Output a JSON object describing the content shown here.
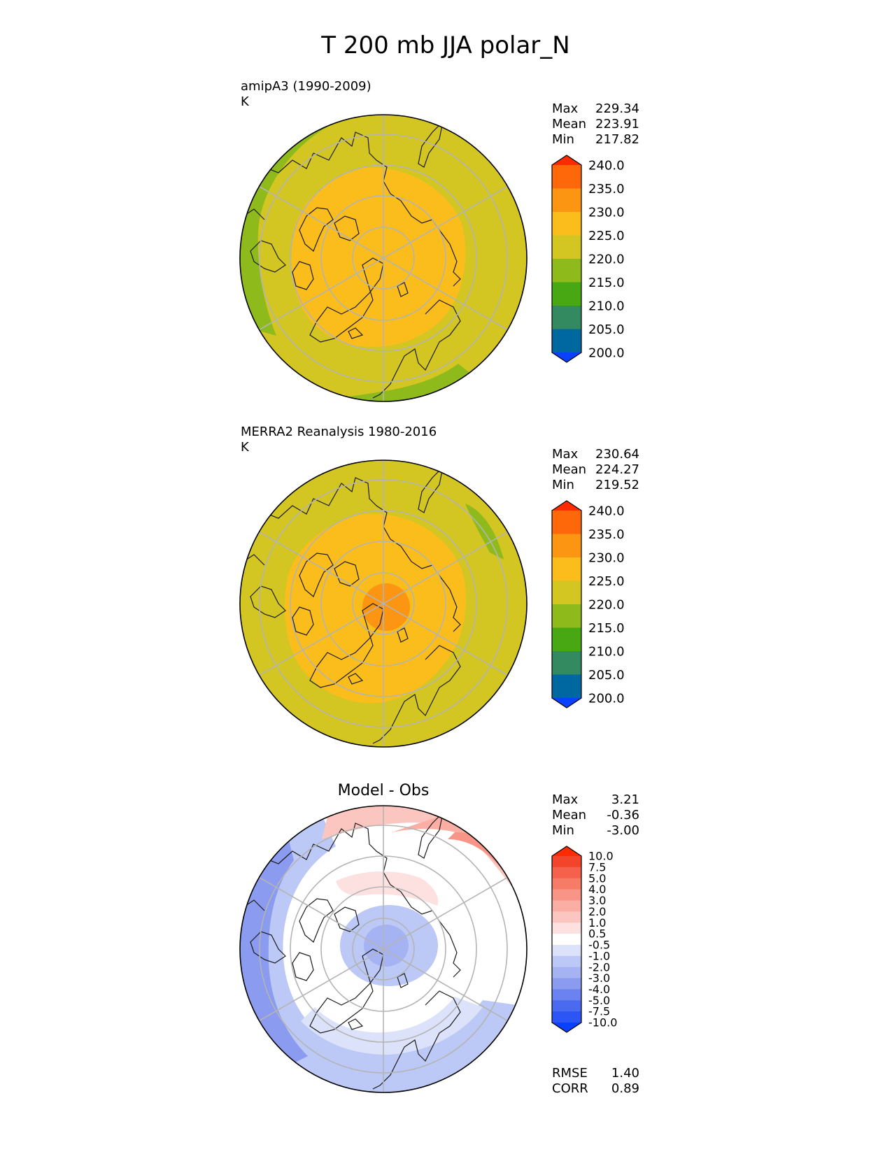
{
  "title": "T 200 mb JJA polar_N",
  "panels": [
    {
      "id": "model",
      "label_line1": "amipA3 (1990-2009)",
      "label_line2": "K",
      "stats": [
        {
          "name": "Max",
          "value": "229.34"
        },
        {
          "name": "Mean",
          "value": "223.91"
        },
        {
          "name": "Min",
          "value": "217.82"
        }
      ],
      "colorbar": {
        "colors": [
          "#0a40ff",
          "#0068a0",
          "#348a60",
          "#48a814",
          "#8fba1c",
          "#d3c622",
          "#fbbd1b",
          "#fb9512",
          "#fe670a",
          "#ff2b00"
        ],
        "ticks": [
          "200.0",
          "205.0",
          "210.0",
          "215.0",
          "220.0",
          "225.0",
          "230.0",
          "235.0",
          "240.0"
        ]
      },
      "fields": {
        "background": "#d3c622",
        "outer_ring": "#8fba1c",
        "warm_region": "#fbbd1b"
      }
    },
    {
      "id": "obs",
      "label_line1": "MERRA2 Reanalysis 1980-2016",
      "label_line2": "K",
      "stats": [
        {
          "name": "Max",
          "value": "230.64"
        },
        {
          "name": "Mean",
          "value": "224.27"
        },
        {
          "name": "Min",
          "value": "219.52"
        }
      ],
      "colorbar": {
        "colors": [
          "#0a40ff",
          "#0068a0",
          "#348a60",
          "#48a814",
          "#8fba1c",
          "#d3c622",
          "#fbbd1b",
          "#fb9512",
          "#fe670a",
          "#ff2b00"
        ],
        "ticks": [
          "200.0",
          "205.0",
          "210.0",
          "215.0",
          "220.0",
          "225.0",
          "230.0",
          "235.0",
          "240.0"
        ]
      },
      "fields": {
        "background": "#d3c622",
        "outer_ring": "#8fba1c",
        "warm_region": "#fbbd1b",
        "pole_max": "#fb9512"
      }
    },
    {
      "id": "diff",
      "title": "Model - Obs",
      "stats": [
        {
          "name": "Max",
          "value": "3.21"
        },
        {
          "name": "Mean",
          "value": "-0.36"
        },
        {
          "name": "Min",
          "value": "-3.00"
        }
      ],
      "colorbar": {
        "colors": [
          "#0a40ff",
          "#2d55f5",
          "#4a6bf0",
          "#6b83f0",
          "#8a9bf0",
          "#a6b3f2",
          "#bcc8f5",
          "#dce2fa",
          "#ffffff",
          "#fde0e0",
          "#fcc6c0",
          "#fbaea4",
          "#f99586",
          "#f77c68",
          "#f5614a",
          "#f3452c",
          "#ff2b00"
        ],
        "ticks": [
          "-10.0",
          "-7.5",
          "-5.0",
          "-4.0",
          "-3.0",
          "-2.0",
          "-1.0",
          "-0.5",
          "0.5",
          "1.0",
          "2.0",
          "3.0",
          "4.0",
          "5.0",
          "7.5",
          "10.0"
        ]
      },
      "extra_stats": [
        {
          "name": "RMSE",
          "value": "1.40"
        },
        {
          "name": "CORR",
          "value": "0.89"
        }
      ]
    }
  ]
}
